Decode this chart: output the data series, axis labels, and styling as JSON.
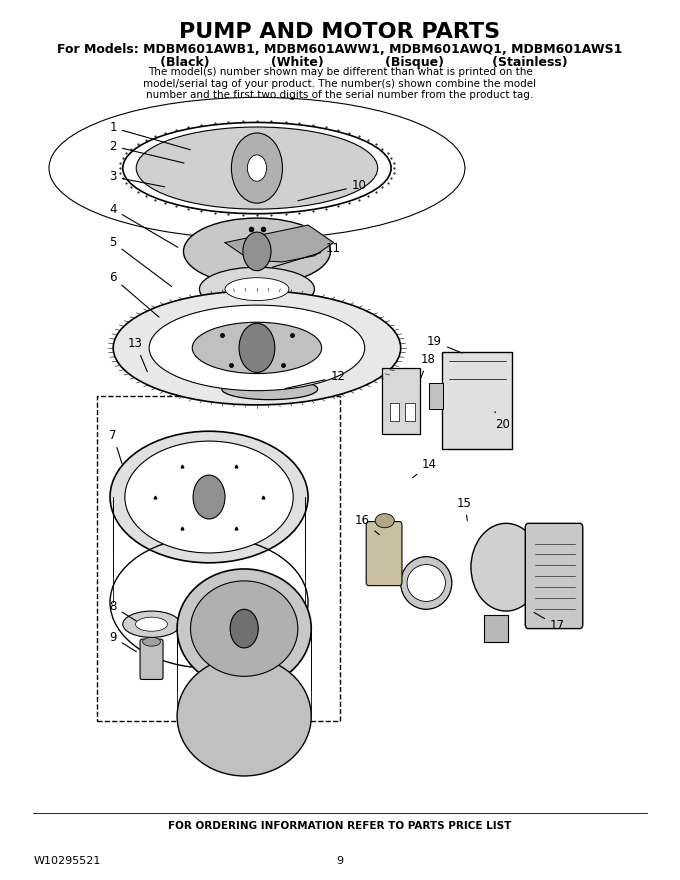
{
  "title": "PUMP AND MOTOR PARTS",
  "subtitle_line1": "For Models: MDBM601AWB1, MDBM601AWW1, MDBM601AWQ1, MDBM601AWS1",
  "subtitle_line2": "           (Black)              (White)              (Bisque)           (Stainless)",
  "disclaimer": "The model(s) number shown may be different than what is printed on the\nmodel/serial tag of your product. The number(s) shown combine the model\nnumber and the first two digits of the serial number from the product tag.",
  "footer_left": "W10295521",
  "footer_center": "9",
  "footer_order": "FOR ORDERING INFORMATION REFER TO PARTS PRICE LIST",
  "bg_color": "#ffffff",
  "title_fontsize": 16,
  "subtitle_fontsize": 9,
  "disclaimer_fontsize": 7.5,
  "label_fontsize": 9,
  "footer_fontsize": 8
}
